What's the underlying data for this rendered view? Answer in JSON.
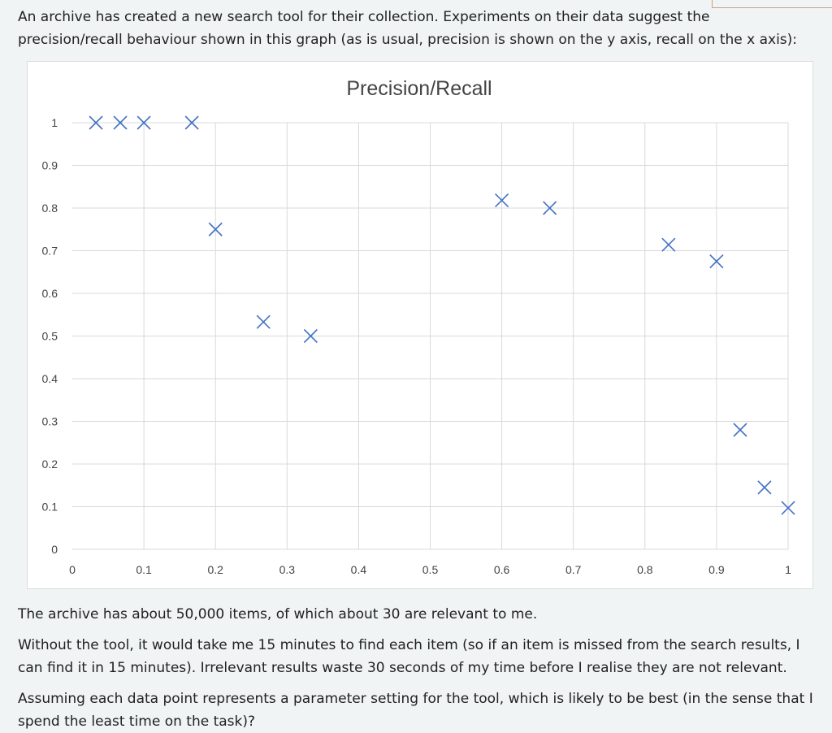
{
  "question": {
    "intro": "An archive has created a new search tool for their collection. Experiments on their data suggest the precision/recall behaviour shown in this graph (as is usual, precision is shown on the y axis, recall on the x axis):",
    "p1": "The archive has about 50,000 items, of which about 30 are relevant to me.",
    "p2": "Without the tool, it would take me 15 minutes to find each item (so if an item is missed from the search results, I can find it in 15 minutes). Irrelevant results waste 30 seconds of my time before I realise they are not relevant.",
    "p3": "Assuming each data point represents a parameter setting for the tool, which is likely to be best (in the sense that I spend the least time on the task)?"
  },
  "colors": {
    "marker": "#4472c4",
    "grid": "#d9d9d9",
    "text": "#444444"
  },
  "chart_data": {
    "type": "scatter",
    "title": "Precision/Recall",
    "xlabel": "",
    "ylabel": "",
    "xlim": [
      0,
      1
    ],
    "ylim": [
      0,
      1
    ],
    "x_ticks": [
      "0",
      "0.1",
      "0.2",
      "0.3",
      "0.4",
      "0.5",
      "0.6",
      "0.7",
      "0.8",
      "0.9",
      "1"
    ],
    "y_ticks": [
      "0",
      "0.1",
      "0.2",
      "0.3",
      "0.4",
      "0.5",
      "0.6",
      "0.7",
      "0.8",
      "0.9",
      "1"
    ],
    "grid": true,
    "legend": "none",
    "marker": "x",
    "points": [
      {
        "x": 0.033,
        "y": 1.0
      },
      {
        "x": 0.067,
        "y": 1.0
      },
      {
        "x": 0.1,
        "y": 1.0
      },
      {
        "x": 0.167,
        "y": 1.0
      },
      {
        "x": 0.2,
        "y": 0.75
      },
      {
        "x": 0.267,
        "y": 0.533
      },
      {
        "x": 0.333,
        "y": 0.5
      },
      {
        "x": 0.6,
        "y": 0.818
      },
      {
        "x": 0.667,
        "y": 0.8
      },
      {
        "x": 0.833,
        "y": 0.714
      },
      {
        "x": 0.9,
        "y": 0.675
      },
      {
        "x": 0.933,
        "y": 0.28
      },
      {
        "x": 0.967,
        "y": 0.145
      },
      {
        "x": 1.0,
        "y": 0.097
      }
    ]
  }
}
